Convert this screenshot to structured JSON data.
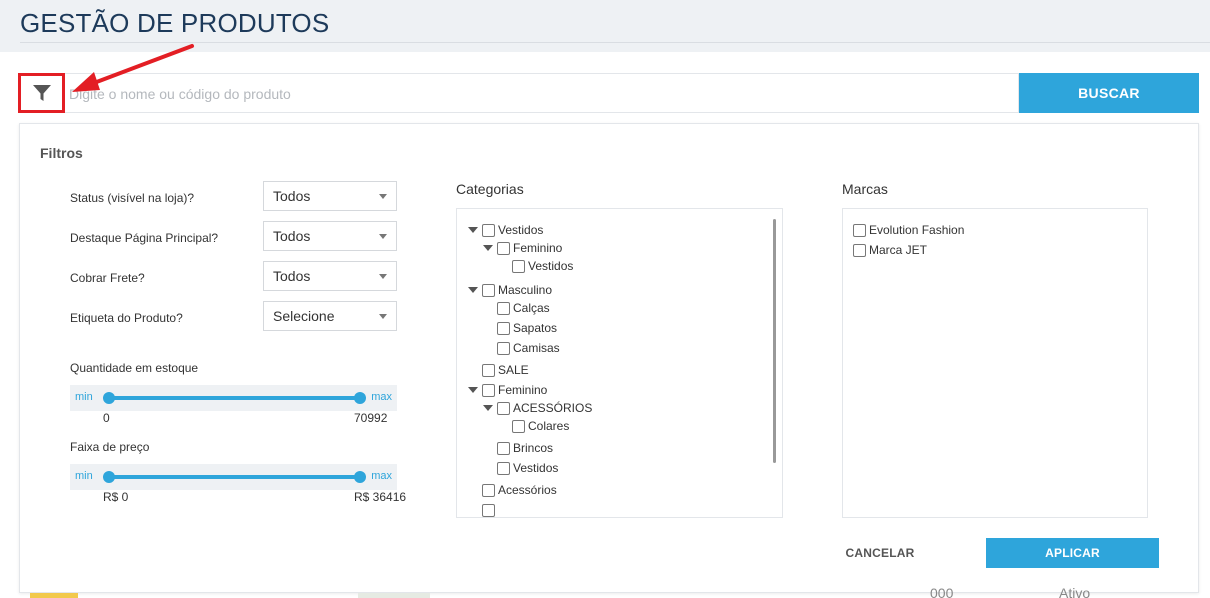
{
  "header": {
    "title": "GESTÃO DE PRODUTOS"
  },
  "search": {
    "placeholder": "Digite o nome ou código do produto",
    "button_label": "BUSCAR",
    "filter_icon": "funnel-icon"
  },
  "annotation": {
    "color": "#e31e24"
  },
  "filters": {
    "title": "Filtros",
    "fields": [
      {
        "label": "Status (visível na loja)?",
        "value": "Todos"
      },
      {
        "label": "Destaque Página Principal?",
        "value": "Todos"
      },
      {
        "label": "Cobrar Frete?",
        "value": "Todos"
      },
      {
        "label": "Etiqueta do Produto?",
        "value": "Selecione"
      }
    ],
    "stock": {
      "label": "Quantidade em estoque",
      "min_label": "min",
      "max_label": "max",
      "min_value": "0",
      "max_value": "70992"
    },
    "price": {
      "label": "Faixa de preço",
      "min_label": "min",
      "max_label": "max",
      "min_value": "R$ 0",
      "max_value": "R$ 36416"
    }
  },
  "categories": {
    "title": "Categorias",
    "items": [
      {
        "label": "Vestidos"
      },
      {
        "label": "Feminino"
      },
      {
        "label": "Vestidos"
      },
      {
        "label": "Masculino"
      },
      {
        "label": "Calças"
      },
      {
        "label": "Sapatos"
      },
      {
        "label": "Camisas"
      },
      {
        "label": "SALE"
      },
      {
        "label": "Feminino"
      },
      {
        "label": "ACESSÓRIOS"
      },
      {
        "label": "Colares"
      },
      {
        "label": "Brincos"
      },
      {
        "label": "Vestidos"
      },
      {
        "label": "Acessórios"
      }
    ]
  },
  "brands": {
    "title": "Marcas",
    "items": [
      {
        "label": "Evolution Fashion"
      },
      {
        "label": "Marca JET"
      }
    ]
  },
  "actions": {
    "cancel_label": "CANCELAR",
    "apply_label": "APLICAR"
  },
  "background": {
    "col1": "000",
    "col2": "Ativo"
  },
  "colors": {
    "accent": "#2ea5db",
    "title": "#1d3a5a"
  }
}
